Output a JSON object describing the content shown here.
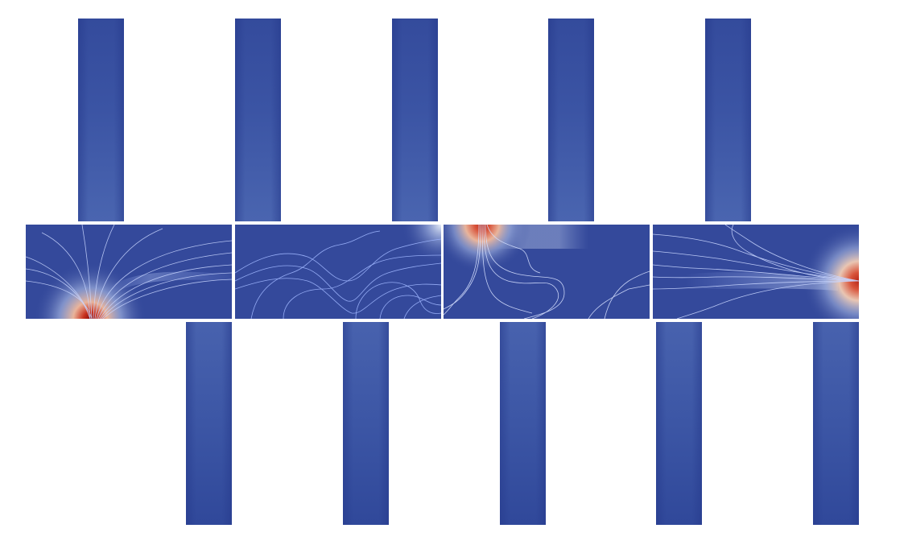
{
  "figure": {
    "panels": [
      {
        "index": 1,
        "inlet": "bottom-left",
        "hotspot": "bottom"
      },
      {
        "index": 2,
        "inlet": "none",
        "hotspot": "top-right"
      },
      {
        "index": 3,
        "inlet": "top",
        "hotspot": "top-left"
      },
      {
        "index": 4,
        "inlet": "right",
        "hotspot": "right"
      }
    ],
    "colors": {
      "low": "#34499b",
      "mid": "#8fa3d6",
      "high": "#d8412f",
      "peak": "#8b0d0d",
      "streamline": "#9fb6ff",
      "background": "#ffffff"
    }
  }
}
